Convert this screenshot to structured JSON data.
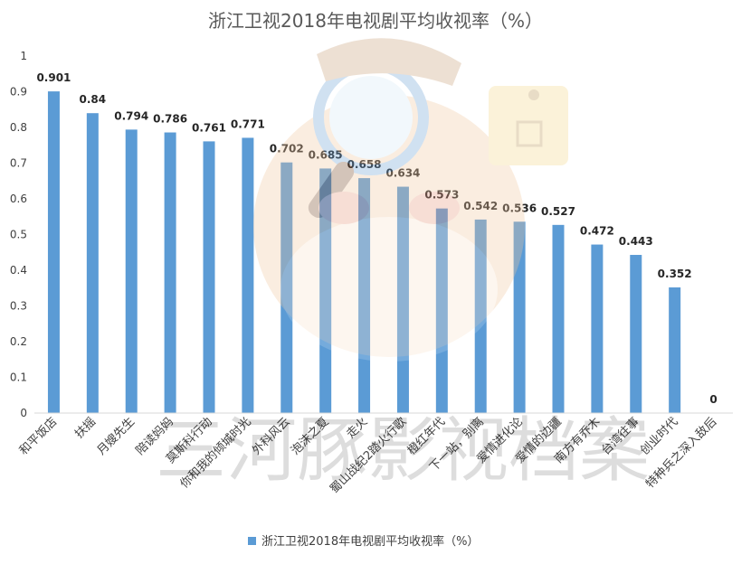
{
  "chart_data": {
    "type": "bar",
    "title": "浙江卫视2018年电视剧平均收视率（%）",
    "xlabel": "",
    "ylabel": "",
    "ylim": [
      0,
      1
    ],
    "yticks": [
      "0",
      "0.1",
      "0.2",
      "0.3",
      "0.4",
      "0.5",
      "0.6",
      "0.7",
      "0.8",
      "0.9",
      "1"
    ],
    "grid": false,
    "legend_position": "bottom",
    "bar_color": "#5B9BD5",
    "categories": [
      "和平饭店",
      "扶摇",
      "月嫂先生",
      "陪读妈妈",
      "莫斯科行动",
      "你和我的倾城时光",
      "外科风云",
      "泡沫之夏",
      "走火",
      "蜀山战纪2踏火行歌",
      "橙红年代",
      "下一站，别离",
      "爱情进化论",
      "爱情的边疆",
      "南方有乔木",
      "台湾往事",
      "创业时代",
      "特种兵之深入敌后"
    ],
    "series": [
      {
        "name": "浙江卫视2018年电视剧平均收视率（%）",
        "values": [
          0.901,
          0.84,
          0.794,
          0.786,
          0.761,
          0.771,
          0.702,
          0.685,
          0.658,
          0.634,
          0.573,
          0.542,
          0.536,
          0.527,
          0.472,
          0.443,
          0.352,
          0
        ]
      }
    ]
  },
  "watermark": {
    "text": "三河豚影视档案",
    "icon": "detective-mascot-logo"
  }
}
